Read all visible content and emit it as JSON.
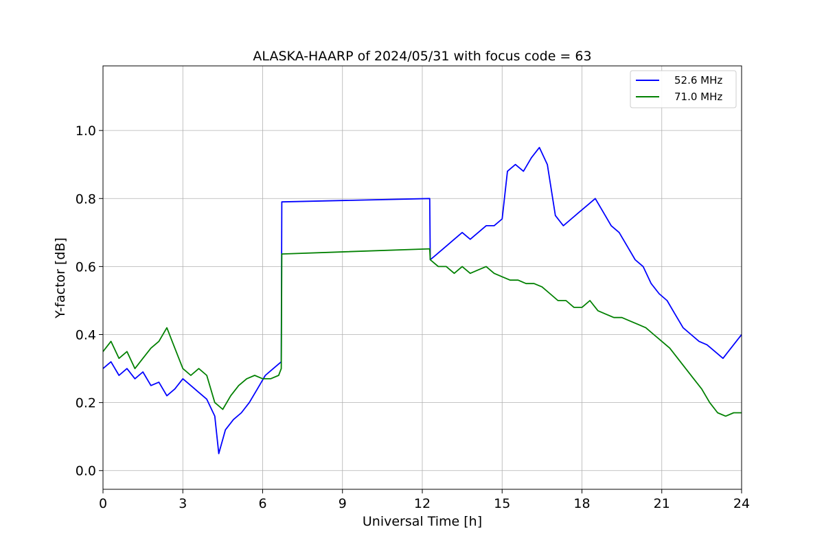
{
  "chart_data": {
    "type": "line",
    "title": "ALASKA-HAARP of 2024/05/31 with focus code = 63",
    "xlabel": "Universal Time [h]",
    "ylabel": "Y-factor [dB]",
    "xlim": [
      0,
      24
    ],
    "ylim": [
      -0.055,
      1.19
    ],
    "xticks": [
      0,
      3,
      6,
      9,
      12,
      15,
      18,
      21,
      24
    ],
    "xtick_labels": [
      "0",
      "3",
      "6",
      "9",
      "12",
      "15",
      "18",
      "21",
      "24"
    ],
    "yticks": [
      0.0,
      0.2,
      0.4,
      0.6,
      0.8,
      1.0
    ],
    "ytick_labels": [
      "0.0",
      "0.2",
      "0.4",
      "0.6",
      "0.8",
      "1.0"
    ],
    "grid": true,
    "legend_position": "top-right",
    "series": [
      {
        "name": "52.6 MHz",
        "color": "#0000ff",
        "x": [
          0.0,
          0.3,
          0.6,
          0.9,
          1.2,
          1.5,
          1.8,
          2.1,
          2.4,
          2.7,
          3.0,
          3.3,
          3.6,
          3.9,
          4.2,
          4.35,
          4.6,
          4.9,
          5.2,
          5.5,
          5.8,
          6.1,
          6.4,
          6.7,
          6.72,
          12.28,
          12.3,
          12.6,
          12.9,
          13.2,
          13.5,
          13.8,
          14.1,
          14.4,
          14.7,
          15.0,
          15.2,
          15.5,
          15.8,
          16.1,
          16.4,
          16.7,
          17.0,
          17.3,
          17.6,
          17.9,
          18.2,
          18.5,
          18.8,
          19.1,
          19.4,
          19.7,
          20.0,
          20.3,
          20.6,
          20.9,
          21.2,
          21.5,
          21.8,
          22.1,
          22.4,
          22.7,
          23.0,
          23.3,
          23.6,
          24.0
        ],
        "y": [
          0.3,
          0.32,
          0.28,
          0.3,
          0.27,
          0.29,
          0.25,
          0.26,
          0.22,
          0.24,
          0.27,
          0.25,
          0.23,
          0.21,
          0.16,
          0.05,
          0.12,
          0.15,
          0.17,
          0.2,
          0.24,
          0.28,
          0.3,
          0.32,
          0.79,
          0.8,
          0.62,
          0.64,
          0.66,
          0.68,
          0.7,
          0.68,
          0.7,
          0.72,
          0.72,
          0.74,
          0.88,
          0.9,
          0.88,
          0.92,
          0.95,
          0.9,
          0.75,
          0.72,
          0.74,
          0.76,
          0.78,
          0.8,
          0.76,
          0.72,
          0.7,
          0.66,
          0.62,
          0.6,
          0.55,
          0.52,
          0.5,
          0.46,
          0.42,
          0.4,
          0.38,
          0.37,
          0.35,
          0.33,
          0.36,
          0.4
        ]
      },
      {
        "name": "71.0 MHz",
        "color": "#008000",
        "x": [
          0.0,
          0.3,
          0.6,
          0.9,
          1.2,
          1.5,
          1.8,
          2.1,
          2.4,
          2.7,
          3.0,
          3.3,
          3.6,
          3.9,
          4.2,
          4.5,
          4.8,
          5.1,
          5.4,
          5.7,
          6.0,
          6.3,
          6.6,
          6.7,
          6.72,
          12.28,
          12.3,
          12.6,
          12.9,
          13.2,
          13.5,
          13.8,
          14.1,
          14.4,
          14.7,
          15.0,
          15.3,
          15.6,
          15.9,
          16.2,
          16.5,
          16.8,
          17.1,
          17.4,
          17.7,
          18.0,
          18.3,
          18.6,
          18.9,
          19.2,
          19.5,
          19.8,
          20.1,
          20.4,
          20.7,
          21.0,
          21.3,
          21.6,
          21.9,
          22.2,
          22.5,
          22.8,
          23.1,
          23.4,
          23.7,
          24.0
        ],
        "y": [
          0.35,
          0.38,
          0.33,
          0.35,
          0.3,
          0.33,
          0.36,
          0.38,
          0.42,
          0.36,
          0.3,
          0.28,
          0.3,
          0.28,
          0.2,
          0.18,
          0.22,
          0.25,
          0.27,
          0.28,
          0.27,
          0.27,
          0.28,
          0.3,
          0.637,
          0.652,
          0.62,
          0.6,
          0.6,
          0.58,
          0.6,
          0.58,
          0.59,
          0.6,
          0.58,
          0.57,
          0.56,
          0.56,
          0.55,
          0.55,
          0.54,
          0.52,
          0.5,
          0.5,
          0.48,
          0.48,
          0.5,
          0.47,
          0.46,
          0.45,
          0.45,
          0.44,
          0.43,
          0.42,
          0.4,
          0.38,
          0.36,
          0.33,
          0.3,
          0.27,
          0.24,
          0.2,
          0.17,
          0.16,
          0.17,
          0.17
        ]
      }
    ]
  }
}
